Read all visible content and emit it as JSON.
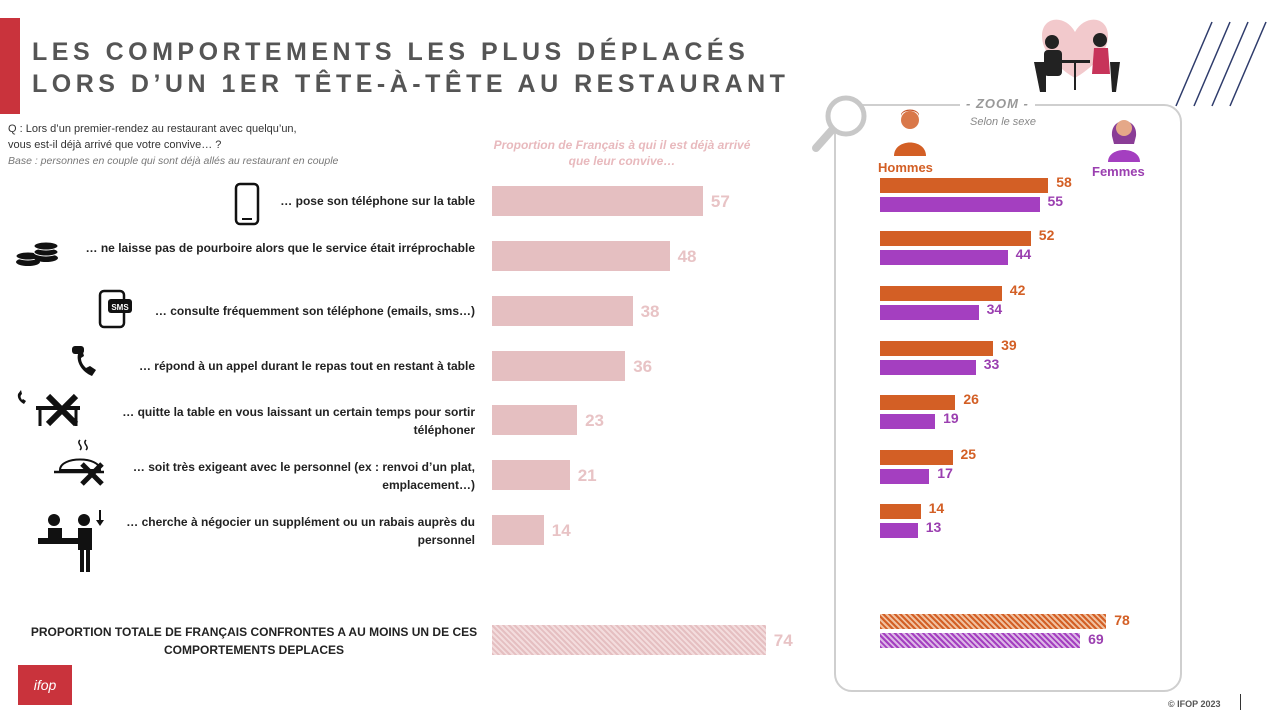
{
  "title": {
    "line1": "LES COMPORTEMENTS LES PLUS DÉPLACÉS",
    "line2": "LORS D’UN 1ER TÊTE-À-TÊTE AU RESTAURANT"
  },
  "question": {
    "line1": "Q : Lors d’un premier-rendez au restaurant avec quelqu’un,",
    "line2": "vous est-il déjà arrivé que votre convive… ?",
    "base": "Base : personnes en couple qui sont déjà allés au restaurant en couple"
  },
  "colors": {
    "accent_red": "#c9333c",
    "bar_pink": "#e5bfc1",
    "hommes": "#d35f25",
    "femmes": "#a43fc0"
  },
  "chart_data": {
    "type": "bar",
    "orientation": "horizontal",
    "title": "Proportion de Français à qui il est déjà arrivé que leur convive…",
    "categories": [
      "… pose son téléphone sur la table",
      "… ne laisse pas de pourboire alors que le service était irréprochable",
      "… consulte fréquemment son téléphone (emails, sms…)",
      "… répond à un appel durant le repas tout en restant à table",
      "… quitte la table en vous laissant un certain temps pour sortir téléphoner",
      "… soit très exigeant avec le personnel (ex : renvoi d’un plat, emplacement…)",
      "… cherche à négocier un supplément ou un rabais auprès du personnel"
    ],
    "values": [
      57,
      48,
      38,
      36,
      23,
      21,
      14
    ],
    "total": {
      "label": "PROPORTION TOTALE DE FRANÇAIS CONFRONTES A AU MOINS UN DE CES COMPORTEMENTS DEPLACES",
      "value": 74
    },
    "xlim": [
      0,
      100
    ],
    "zoom": {
      "title": "- ZOOM -",
      "subtitle": "Selon le sexe",
      "series": [
        {
          "name": "Hommes",
          "values": [
            58,
            52,
            42,
            39,
            26,
            25,
            14
          ],
          "total": 78
        },
        {
          "name": "Femmes",
          "values": [
            55,
            44,
            34,
            33,
            19,
            17,
            13
          ],
          "total": 69
        }
      ]
    }
  },
  "footer": {
    "logo": "ifop",
    "copyright": "© IFOP 2023"
  },
  "icons": [
    "phone-icon",
    "coins-icon",
    "sms-phone-icon",
    "call-icon",
    "leave-table-icon",
    "cloche-icon",
    "negotiate-icon",
    "magnifier-icon",
    "couple-dinner-icon",
    "man-avatar-icon",
    "woman-avatar-icon"
  ]
}
